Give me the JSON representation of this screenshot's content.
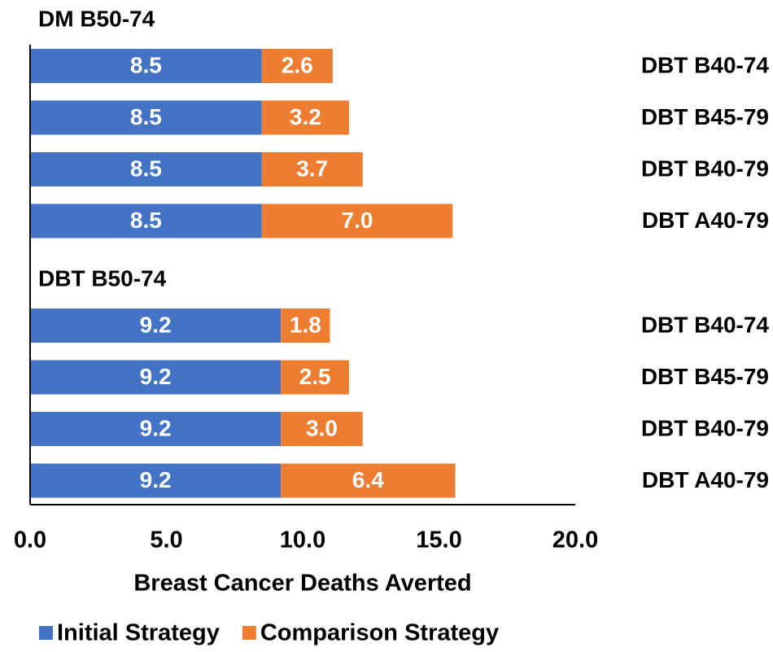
{
  "chart_data": {
    "type": "stacked-barh",
    "x_label": "Breast Cancer Deaths Averted",
    "group_labels": [
      "DM B50-74",
      "DBT B50-74"
    ],
    "categories": [
      "DBT B40-74",
      "DBT B45-79",
      "DBT B40-79",
      "DBT A40-79",
      "DBT B40-74",
      "DBT B45-79",
      "DBT B40-79",
      "DBT A40-79"
    ],
    "series": [
      {
        "name": "Initial Strategy",
        "color": "#4472c4",
        "values": [
          8.5,
          8.5,
          8.5,
          8.5,
          9.2,
          9.2,
          9.2,
          9.2
        ],
        "value_labels": [
          "8.5",
          "8.5",
          "8.5",
          "8.5",
          "9.2",
          "9.2",
          "9.2",
          "9.2"
        ]
      },
      {
        "name": "Comparison Strategy",
        "color": "#ed7d31",
        "values": [
          2.6,
          3.2,
          3.7,
          7.0,
          1.8,
          2.5,
          3.0,
          6.4
        ],
        "value_labels": [
          "2.6",
          "3.2",
          "3.7",
          "7.0",
          "1.8",
          "2.5",
          "3.0",
          "6.4"
        ]
      }
    ],
    "xlim": [
      0,
      20
    ],
    "xticks": [
      {
        "value": 0,
        "label": "0.0"
      },
      {
        "value": 5,
        "label": "5.0"
      },
      {
        "value": 10,
        "label": "10.0"
      },
      {
        "value": 15,
        "label": "15.0"
      },
      {
        "value": 20,
        "label": "20.0"
      }
    ],
    "grid": false
  }
}
